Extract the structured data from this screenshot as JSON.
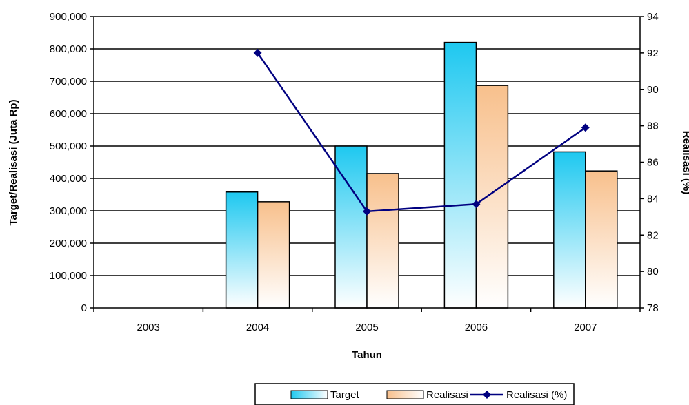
{
  "chart_data": {
    "type": "bar",
    "categories": [
      "2003",
      "2004",
      "2005",
      "2006",
      "2007"
    ],
    "xlabel": "Tahun",
    "ylabel": "Target/Realisasi (Juta Rp)",
    "y2label": "Realisasi (%)",
    "ylim": [
      0,
      900000
    ],
    "yticks": [
      "0",
      "100,000",
      "200,000",
      "300,000",
      "400,000",
      "500,000",
      "600,000",
      "700,000",
      "800,000",
      "900,000"
    ],
    "y2lim": [
      78,
      94
    ],
    "y2ticks": [
      "78",
      "80",
      "82",
      "84",
      "86",
      "88",
      "90",
      "92",
      "94"
    ],
    "grid": true,
    "legend_position": "bottom",
    "series": [
      {
        "name": "Target",
        "type": "bar",
        "axis": "left",
        "values": [
          null,
          358000,
          500000,
          820000,
          482000
        ],
        "color_top": "#1EC8F0",
        "color_bottom": "#FFFFFF"
      },
      {
        "name": "Realisasi",
        "type": "bar",
        "axis": "left",
        "values": [
          null,
          328000,
          415000,
          687000,
          423000
        ],
        "color_top": "#F8C08C",
        "color_bottom": "#FFFFFF"
      },
      {
        "name": "Realisasi (%)",
        "type": "line",
        "axis": "right",
        "values": [
          null,
          92.0,
          83.3,
          83.7,
          87.9
        ],
        "color": "#000080",
        "marker": "diamond"
      }
    ]
  }
}
